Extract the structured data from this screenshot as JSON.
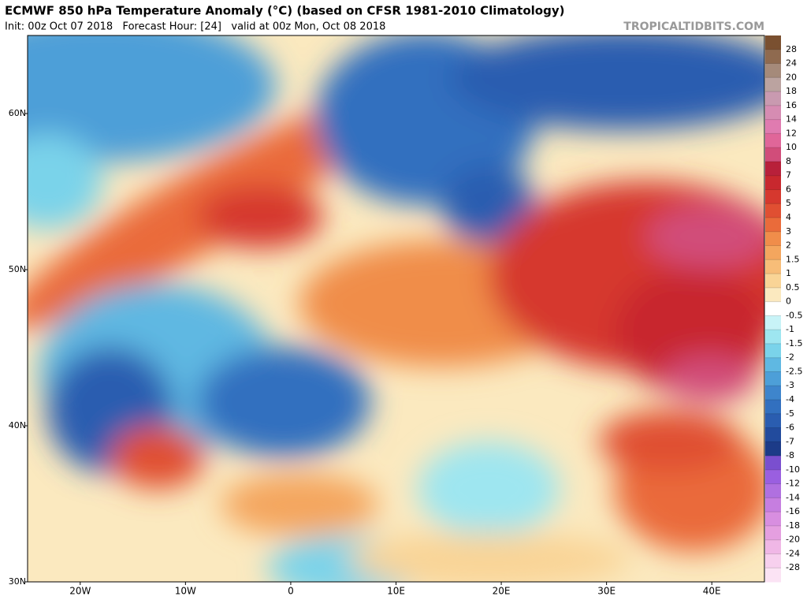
{
  "header": {
    "title": "ECMWF 850 hPa Temperature Anomaly (°C) (based on CFSR 1981-2010 Climatology)",
    "subtitle": "Init: 00z Oct 07 2018   Forecast Hour: [24]   valid at 00z Mon, Oct 08 2018",
    "source": "TROPICALTIDBITS.COM"
  },
  "map": {
    "lonlim": [
      -25,
      45
    ],
    "latlim": [
      30,
      65
    ],
    "xticks": [
      {
        "value": -20,
        "label": "20W"
      },
      {
        "value": -10,
        "label": "10W"
      },
      0,
      {
        "value": 10,
        "label": "10E"
      },
      {
        "value": 20,
        "label": "20E"
      },
      {
        "value": 30,
        "label": "30E"
      },
      {
        "value": 40,
        "label": "40E"
      }
    ],
    "yticks": [
      {
        "value": 30,
        "label": "30N"
      },
      {
        "value": 40,
        "label": "40N"
      },
      {
        "value": 50,
        "label": "50N"
      },
      {
        "value": 60,
        "label": "60N"
      }
    ]
  },
  "colorbar": {
    "levels": [
      28,
      24,
      20,
      18,
      16,
      14,
      12,
      10,
      8,
      7,
      6,
      5,
      4,
      3,
      2,
      1.5,
      1,
      0.5,
      0,
      -0.5,
      -1,
      -1.5,
      -2,
      -2.5,
      -3,
      -4,
      -5,
      -6,
      -7,
      -8,
      -10,
      -12,
      -14,
      -16,
      -18,
      -20,
      -24,
      -28
    ],
    "colors": [
      "#7a5030",
      "#8f6a4f",
      "#a58a7a",
      "#bba3a0",
      "#c99ab0",
      "#d68cb2",
      "#e07bb0",
      "#e06699",
      "#d14d7a",
      "#b8203a",
      "#c8282e",
      "#d6382e",
      "#e04f32",
      "#ea6b3a",
      "#f08d4a",
      "#f4a65e",
      "#f7bd78",
      "#f9d496",
      "#fbe9bf",
      "#ffffff",
      "#c8f3f7",
      "#9ee6f0",
      "#7ad3ea",
      "#5fb8e2",
      "#4d9fd8",
      "#3e85cc",
      "#3270bf",
      "#2a5db0",
      "#224b9d",
      "#1c3b88",
      "#7a4fcf",
      "#9a5fe0",
      "#b070e0",
      "#c67ee0",
      "#d88ee0",
      "#e59fe0",
      "#f0b7e6",
      "#f7d0ee",
      "#fbe3f4"
    ]
  }
}
